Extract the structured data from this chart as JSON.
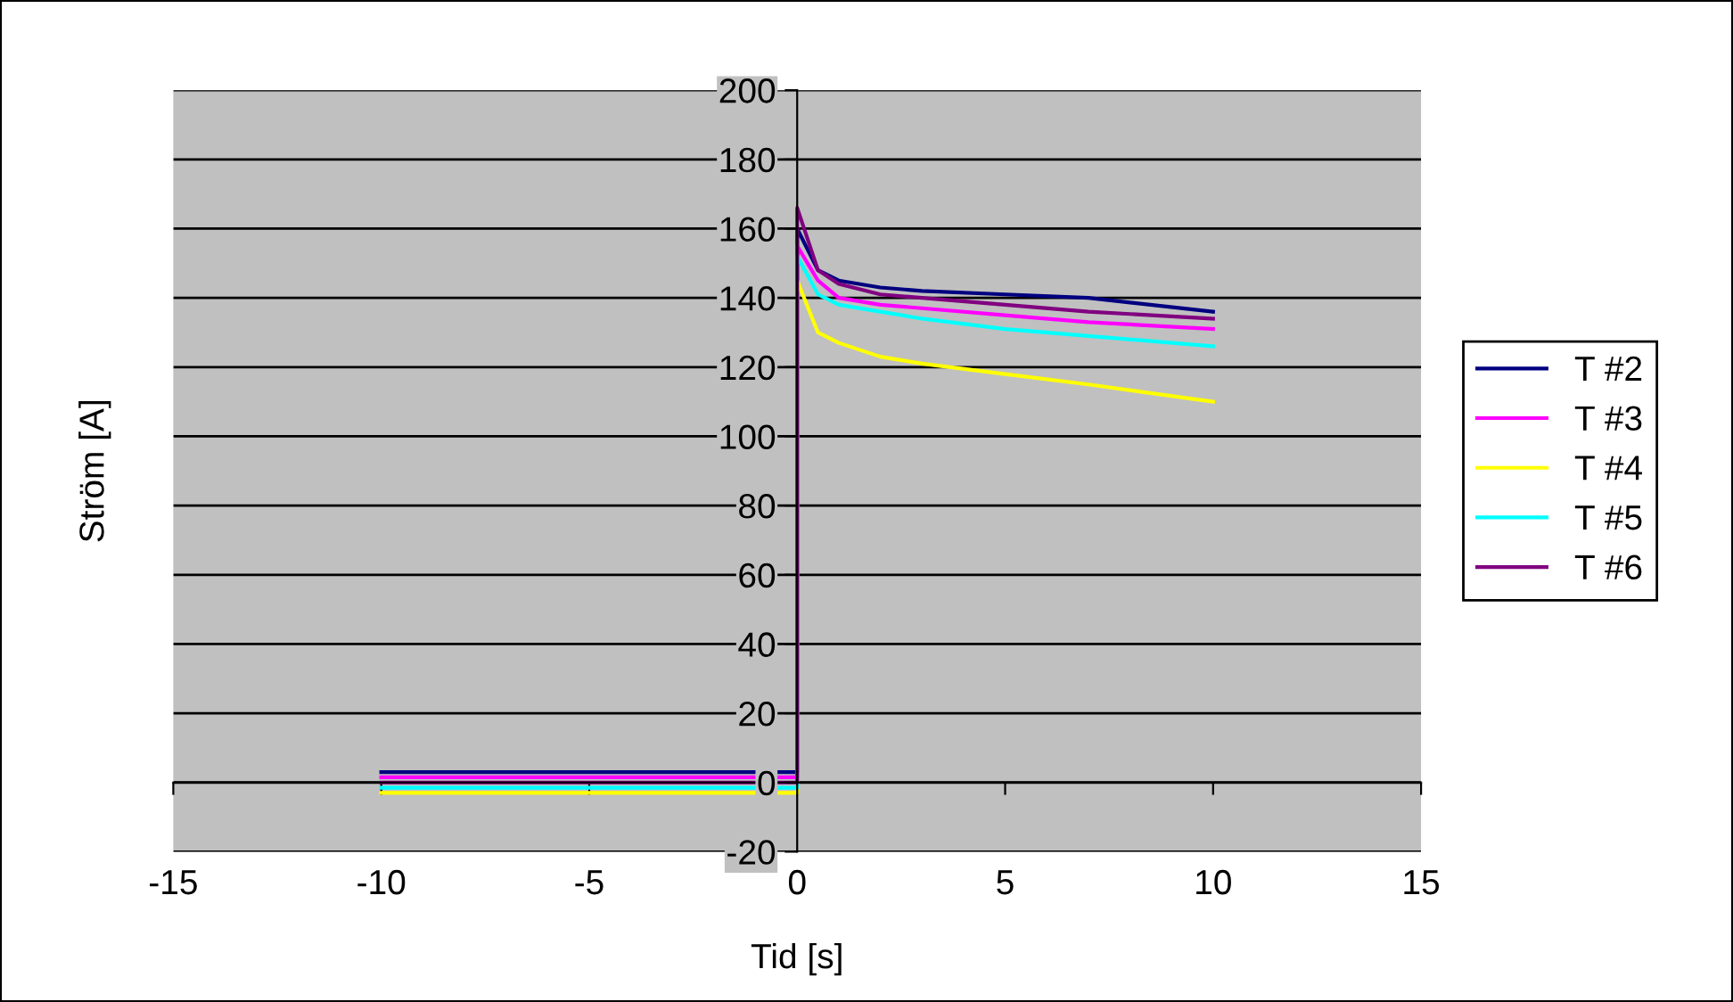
{
  "chart_data": {
    "type": "line",
    "xlabel": "Tid [s]",
    "ylabel": "Ström [A]",
    "x": [
      -10,
      -5,
      0,
      0,
      0.5,
      1,
      2,
      3,
      5,
      7,
      10
    ],
    "series": [
      {
        "name": "T #2",
        "color": "#000080",
        "values": [
          3,
          3,
          3,
          160,
          148,
          145,
          143,
          142,
          141,
          140,
          136
        ]
      },
      {
        "name": "T #3",
        "color": "#ff00ff",
        "values": [
          1.5,
          1.5,
          1.5,
          155,
          145,
          140,
          138,
          137,
          135,
          133,
          131
        ]
      },
      {
        "name": "T #4",
        "color": "#ffff00",
        "values": [
          -3,
          -3,
          -3,
          145,
          130,
          127,
          123,
          121,
          118,
          115,
          110
        ]
      },
      {
        "name": "T #5",
        "color": "#00ffff",
        "values": [
          -1.5,
          -1.5,
          -1.5,
          152,
          141,
          138,
          136,
          134,
          131,
          129,
          126
        ]
      },
      {
        "name": "T #6",
        "color": "#800080",
        "values": [
          0,
          0,
          0,
          166,
          148,
          144,
          141,
          140,
          138,
          136,
          134
        ]
      }
    ],
    "xlim": [
      -15,
      15
    ],
    "xticks": [
      -15,
      -10,
      -5,
      0,
      5,
      10,
      15
    ],
    "ylim": [
      -20,
      200
    ],
    "yticks": [
      -20,
      0,
      20,
      40,
      60,
      80,
      100,
      120,
      140,
      160,
      180,
      200
    ],
    "grid": "y",
    "legend": "right",
    "marker": "none",
    "line_style": "solid"
  }
}
